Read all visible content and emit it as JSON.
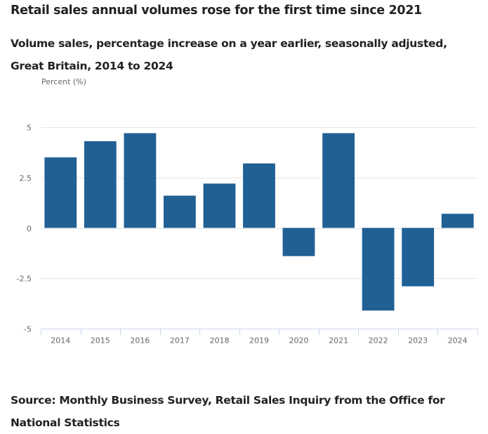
{
  "header": {
    "title": "Retail sales annual volumes rose for the first time since 2021",
    "subtitle": "Volume sales, percentage increase on a year earlier, seasonally adjusted, Great Britain, 2014 to 2024"
  },
  "footer": {
    "source": "Source: Monthly Business Survey, Retail Sales Inquiry from the Office for National Statistics"
  },
  "colors": {
    "bar": "#206095",
    "gridline": "#e6e6e6",
    "axis": "#ccd6eb",
    "tick_label": "#666666"
  },
  "chart_data": {
    "type": "bar",
    "title": "Retail sales annual volumes rose for the first time since 2021",
    "subtitle": "Volume sales, percentage increase on a year earlier, seasonally adjusted, Great Britain, 2014 to 2024",
    "xlabel": "",
    "ylabel": "Percent (%)",
    "categories": [
      "2014",
      "2015",
      "2016",
      "2017",
      "2018",
      "2019",
      "2020",
      "2021",
      "2022",
      "2023",
      "2024"
    ],
    "series": [
      {
        "name": "Volume sales, percentage change on a year earlier",
        "values": [
          3.5,
          4.3,
          4.7,
          1.6,
          2.2,
          3.2,
          -1.4,
          4.7,
          -4.1,
          -2.9,
          0.7
        ]
      }
    ],
    "ylim": [
      -5,
      5
    ],
    "yticks": [
      5,
      2.5,
      0,
      -2.5,
      -5
    ],
    "ytick_labels": [
      "5",
      "2.5",
      "0",
      "-2.5",
      "-5"
    ],
    "grid": true,
    "legend": "none",
    "source": "Source: Monthly Business Survey, Retail Sales Inquiry from the Office for National Statistics"
  }
}
